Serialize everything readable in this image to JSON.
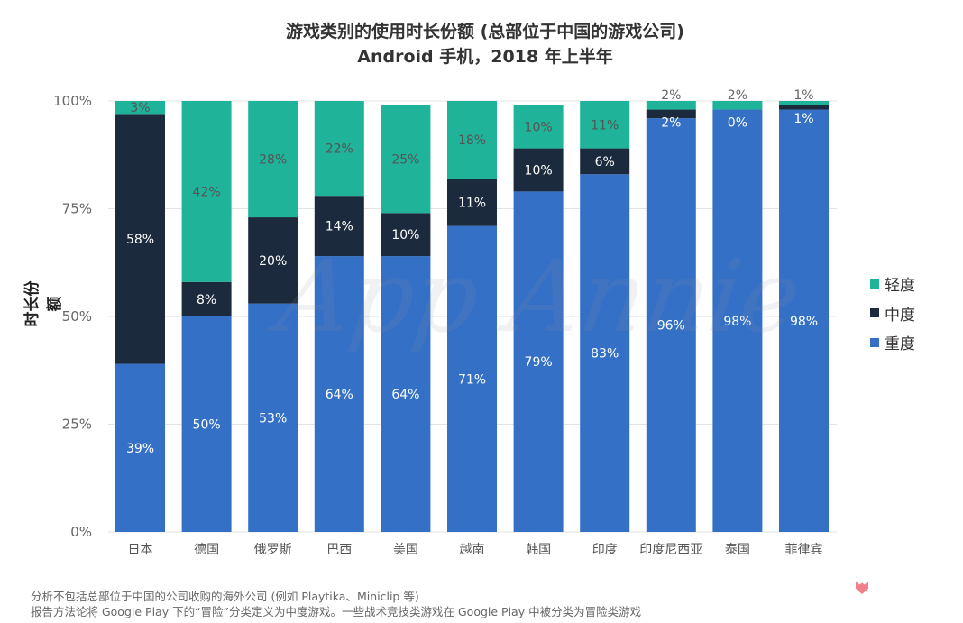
{
  "title": "游戏类别的使用时长份额 (总部位于中国的游戏公司)",
  "subtitle": "Android 手机，2018 年上半年",
  "footnotes": [
    "分析不包括总部位于中国的公司收购的海外公司 (例如 Playtika、Miniclip 等)",
    "报告方法论将 Google Play 下的“冒险”分类定义为中度游戏。一些战术竞技类游戏在 Google Play 中被分类为冒险类游戏"
  ],
  "watermark": "App Annie",
  "chart_data": {
    "type": "bar",
    "stacked": true,
    "title": "游戏类别的使用时长份额 (总部位于中国的游戏公司)",
    "subtitle": "Android 手机，2018 年上半年",
    "xlabel": "",
    "ylabel": "时长份额",
    "ylim": [
      0,
      100
    ],
    "yticks": [
      "0%",
      "25%",
      "50%",
      "75%",
      "100%"
    ],
    "grid": true,
    "legend_position": "right",
    "categories": [
      "日本",
      "德国",
      "俄罗斯",
      "巴西",
      "美国",
      "越南",
      "韩国",
      "印度",
      "印度尼西亚",
      "泰国",
      "菲律宾"
    ],
    "series": [
      {
        "name": "重度",
        "color": "#3470c6",
        "values": [
          39,
          50,
          53,
          64,
          64,
          71,
          79,
          83,
          96,
          98,
          98
        ]
      },
      {
        "name": "中度",
        "color": "#1b2a3c",
        "values": [
          58,
          8,
          20,
          14,
          10,
          11,
          10,
          6,
          2,
          0,
          1
        ]
      },
      {
        "name": "轻度",
        "color": "#1fb39a",
        "values": [
          3,
          42,
          28,
          22,
          25,
          18,
          10,
          11,
          2,
          2,
          1
        ]
      }
    ],
    "legend_order": [
      "轻度",
      "中度",
      "重度"
    ]
  }
}
